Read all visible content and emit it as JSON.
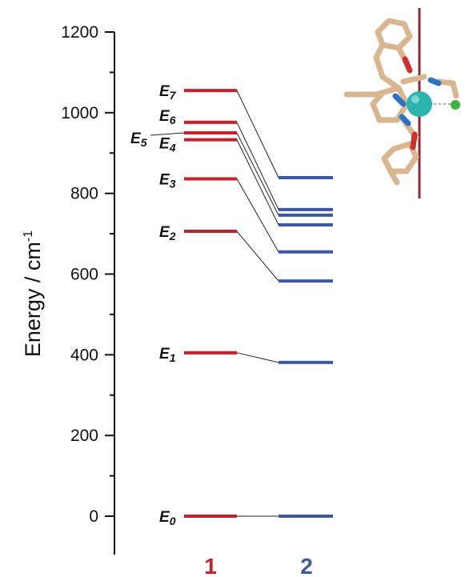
{
  "chart_data": {
    "type": "energy-level-diagram",
    "ylabel": "Energy / cm",
    "ylabel_superscript": "-1",
    "ylim": [
      -80,
      1200
    ],
    "yticks": [
      0,
      200,
      400,
      600,
      800,
      1000,
      1200
    ],
    "tick_labels": [
      "0",
      "200",
      "400",
      "600",
      "800",
      "1000",
      "1200"
    ],
    "grid": false,
    "columns": [
      {
        "name": "1",
        "color": "#c8202a"
      },
      {
        "name": "2",
        "color": "#3d58a8"
      }
    ],
    "levels": [
      {
        "label": "E",
        "sub": "0",
        "compound_1": 0,
        "compound_2": 0
      },
      {
        "label": "E",
        "sub": "1",
        "compound_1": 405,
        "compound_2": 381
      },
      {
        "label": "E",
        "sub": "2",
        "compound_1": 706,
        "compound_2": 583
      },
      {
        "label": "E",
        "sub": "3",
        "compound_1": 836,
        "compound_2": 655
      },
      {
        "label": "E",
        "sub": "4",
        "compound_1": 933,
        "compound_2": 722
      },
      {
        "label": "E",
        "sub": "5",
        "compound_1": 950,
        "compound_2": 746
      },
      {
        "label": "E",
        "sub": "6",
        "compound_1": 976,
        "compound_2": 760
      },
      {
        "label": "E",
        "sub": "7",
        "compound_1": 1055,
        "compound_2": 839
      }
    ]
  },
  "inset": {
    "description_icon": "molecular-structure-icon",
    "colors": {
      "bonds": "#d8b790",
      "oxygen": "#d0302b",
      "nitrogen": "#2f72c4",
      "metal": "#2bb3ad",
      "chloride": "#3cb43c",
      "axis": "#8a2b32"
    }
  }
}
